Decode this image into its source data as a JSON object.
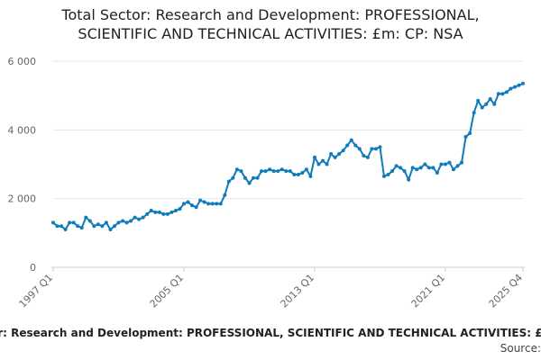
{
  "chart_data": {
    "type": "line",
    "title": [
      "Total Sector: Research and Development: PROFESSIONAL,",
      "SCIENTIFIC AND TECHNICAL ACTIVITIES: £m: CP: NSA"
    ],
    "footer_title": "Total Sector: Research and Development: PROFESSIONAL, SCIENTIFIC AND TECHNICAL ACTIVITIES: £m: CP: NSA",
    "source": "Source:",
    "categories": [
      "1997 Q1",
      null,
      null,
      null,
      null,
      null,
      null,
      null,
      null,
      null,
      null,
      null,
      null,
      null,
      null,
      null,
      null,
      null,
      null,
      null,
      null,
      null,
      null,
      null,
      null,
      null,
      null,
      null,
      null,
      null,
      null,
      null,
      "2005 Q1",
      null,
      null,
      null,
      null,
      null,
      null,
      null,
      null,
      null,
      null,
      null,
      null,
      null,
      null,
      null,
      null,
      null,
      null,
      null,
      null,
      null,
      null,
      null,
      null,
      null,
      null,
      null,
      null,
      null,
      null,
      null,
      "2013 Q1",
      null,
      null,
      null,
      null,
      null,
      null,
      null,
      null,
      null,
      null,
      null,
      null,
      null,
      null,
      null,
      null,
      null,
      null,
      null,
      null,
      null,
      null,
      null,
      null,
      null,
      null,
      null,
      null,
      null,
      null,
      null,
      "2021 Q1",
      null,
      null,
      null,
      null,
      null,
      null,
      null,
      null,
      null,
      null,
      null,
      null,
      null,
      null,
      null,
      null,
      null,
      null,
      "2025 Q4"
    ],
    "series": [
      {
        "color": "#0f7bbb",
        "values": [
          1300,
          1200,
          1200,
          1100,
          1300,
          1300,
          1200,
          1150,
          1450,
          1350,
          1200,
          1250,
          1200,
          1300,
          1100,
          1200,
          1300,
          1350,
          1300,
          1350,
          1450,
          1400,
          1450,
          1550,
          1650,
          1600,
          1600,
          1550,
          1550,
          1600,
          1650,
          1700,
          1850,
          1900,
          1800,
          1750,
          1950,
          1900,
          1850,
          1850,
          1850,
          1850,
          2100,
          2500,
          2600,
          2850,
          2800,
          2600,
          2450,
          2600,
          2600,
          2800,
          2800,
          2850,
          2800,
          2800,
          2850,
          2800,
          2800,
          2700,
          2700,
          2750,
          2850,
          2650,
          3200,
          3000,
          3100,
          3000,
          3300,
          3200,
          3300,
          3400,
          3550,
          3700,
          3550,
          3450,
          3250,
          3200,
          3450,
          3450,
          3500,
          2650,
          2700,
          2800,
          2950,
          2900,
          2800,
          2550,
          2900,
          2850,
          2900,
          3000,
          2900,
          2900,
          2750,
          3000,
          3000,
          3050,
          2850,
          2950,
          3050,
          3800,
          3900,
          4500,
          4850,
          4650,
          4750,
          4900,
          4750,
          5050,
          5050,
          5100,
          5200,
          5250,
          5300,
          5350
        ]
      }
    ],
    "ylim": [
      0,
      6000
    ],
    "yticks": [
      0,
      {
        "value": 2000,
        "label": "2 000"
      },
      {
        "value": 4000,
        "label": "4 000"
      },
      {
        "value": 6000,
        "label": "6 000"
      }
    ],
    "grid": true
  }
}
